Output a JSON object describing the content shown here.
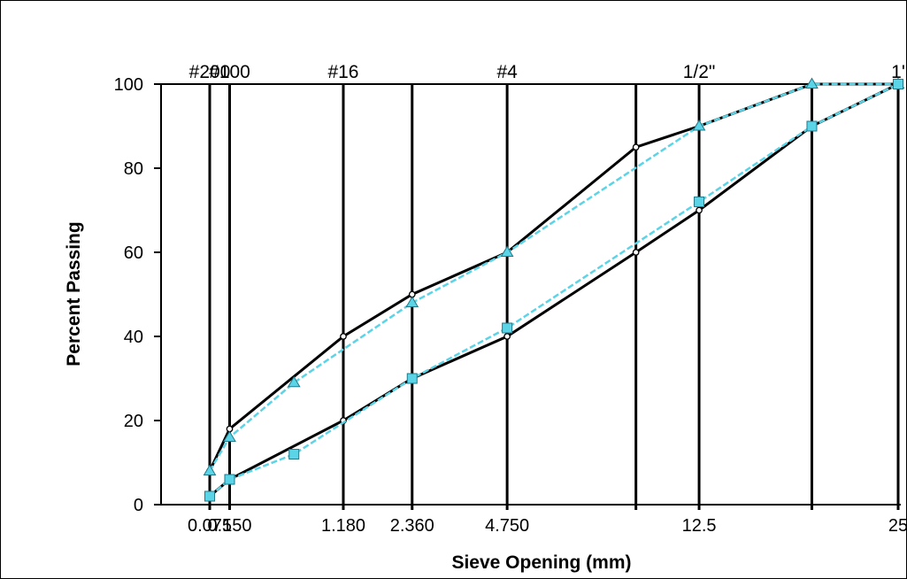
{
  "chart_data": {
    "type": "line",
    "title": "",
    "xlabel": "Sieve Opening (mm)",
    "ylabel": "Percent Passing",
    "ylim": [
      0,
      100
    ],
    "yticks": [
      0,
      20,
      40,
      60,
      80,
      100
    ],
    "x_scale": "power-0.45",
    "x_domain": [
      0.075,
      25
    ],
    "grid": "vertical lines at sieve sizes",
    "sieves": [
      {
        "size": 0.075,
        "label": "#200"
      },
      {
        "size": 0.15,
        "label": "#100"
      },
      {
        "size": 1.18,
        "label": "#16"
      },
      {
        "size": 2.36,
        "label": ""
      },
      {
        "size": 4.75,
        "label": "#4"
      },
      {
        "size": 9.5,
        "label": ""
      },
      {
        "size": 12.5,
        "label": "1/2\""
      },
      {
        "size": 19,
        "label": ""
      },
      {
        "size": 25,
        "label": "1'"
      }
    ],
    "x_tick_labels": [
      {
        "size": 0.075,
        "label": "0.075"
      },
      {
        "size": 0.15,
        "label": "0.150"
      },
      {
        "size": 1.18,
        "label": "1.180"
      },
      {
        "size": 2.36,
        "label": "2.360"
      },
      {
        "size": 4.75,
        "label": "4.750"
      },
      {
        "size": 12.5,
        "label": "12.5"
      },
      {
        "size": 25,
        "label": "25"
      }
    ],
    "series": [
      {
        "role": "upper-spec-limit",
        "style": "solid",
        "color": "#000000",
        "marker": "circle",
        "x": [
          0.075,
          0.15,
          1.18,
          2.36,
          4.75,
          9.5,
          12.5,
          19,
          25
        ],
        "y": [
          8,
          18,
          40,
          50,
          60,
          85,
          90,
          100,
          100
        ]
      },
      {
        "role": "lower-spec-limit",
        "style": "solid",
        "color": "#000000",
        "marker": "circle",
        "x": [
          0.075,
          0.15,
          1.18,
          2.36,
          4.75,
          9.5,
          12.5,
          19,
          25
        ],
        "y": [
          2,
          6,
          20,
          30,
          40,
          60,
          70,
          90,
          100
        ]
      },
      {
        "role": "upper-gradation",
        "style": "dashed",
        "color": "#5ad4e6",
        "marker": "triangle",
        "x": [
          0.075,
          0.15,
          0.6,
          2.36,
          4.75,
          12.5,
          19,
          25
        ],
        "y": [
          8,
          16,
          29,
          48,
          60,
          90,
          100,
          100
        ]
      },
      {
        "role": "lower-gradation",
        "style": "dashed",
        "color": "#5ad4e6",
        "marker": "square",
        "x": [
          0.075,
          0.15,
          0.6,
          2.36,
          4.75,
          12.5,
          19,
          25
        ],
        "y": [
          2,
          6,
          12,
          30,
          42,
          72,
          90,
          100
        ]
      }
    ]
  }
}
